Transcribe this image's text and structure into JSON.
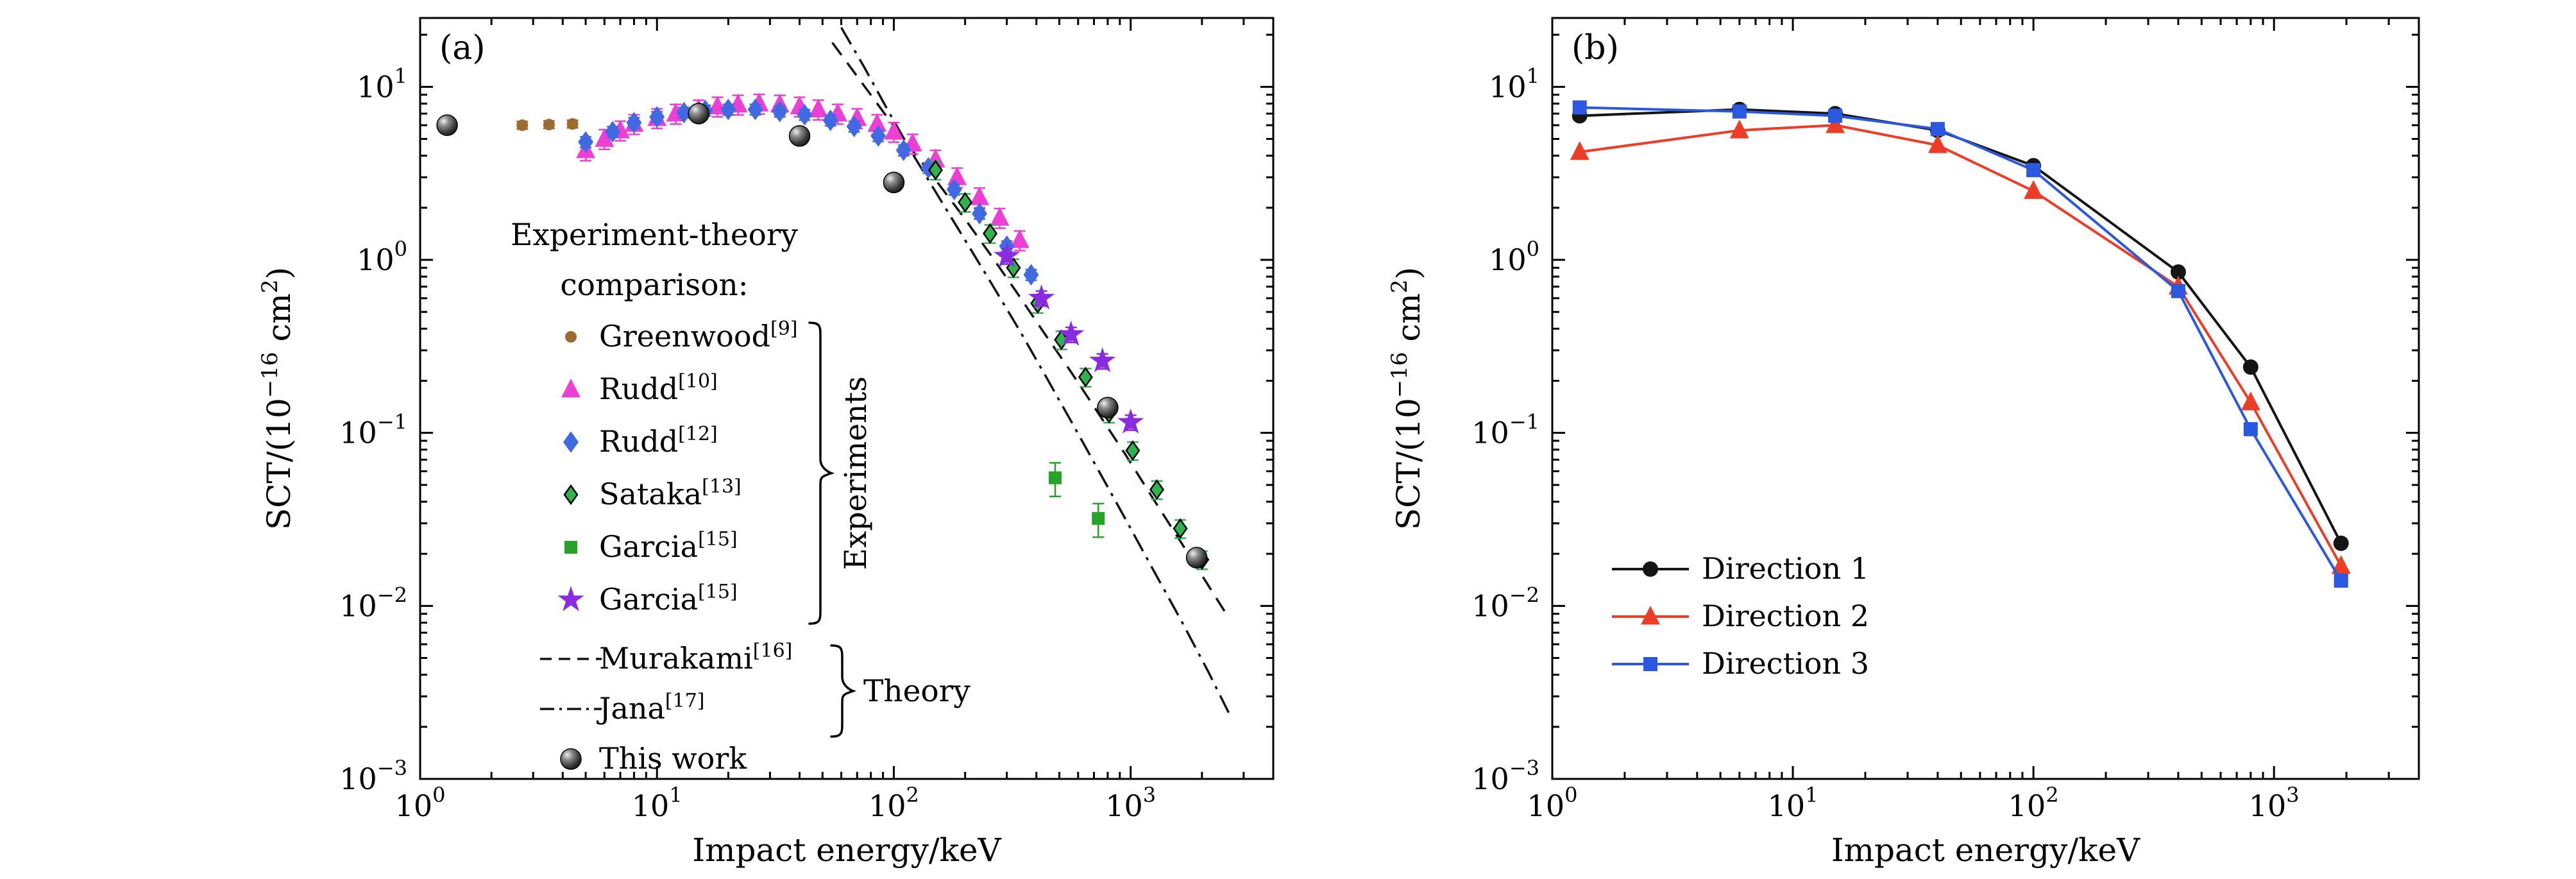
{
  "figure": {
    "background": "#ffffff",
    "frame_color": "#000000",
    "panels": [
      "(a)",
      "(b)"
    ]
  },
  "chart_data": [
    {
      "id": "panel-a",
      "panel_label": "(a)",
      "type": "scatter",
      "x_scale": "log",
      "y_scale": "log",
      "xlim": [
        1,
        4000
      ],
      "ylim": [
        0.001,
        25
      ],
      "grid": false,
      "xlabel": "Impact energy/keV",
      "ylabel": "SCT/(10⁻¹⁶ cm²)",
      "ylabel_parts": [
        {
          "t": "SCT/(10"
        },
        {
          "t": "−16",
          "sup": true
        },
        {
          "t": " cm"
        },
        {
          "t": "2",
          "sup": true
        },
        {
          "t": ")"
        }
      ],
      "x_ticks": [
        {
          "value": 1,
          "base": "10",
          "exp": "0"
        },
        {
          "value": 10,
          "base": "10",
          "exp": "1"
        },
        {
          "value": 100,
          "base": "10",
          "exp": "2"
        },
        {
          "value": 1000,
          "base": "10",
          "exp": "3"
        }
      ],
      "y_ticks": [
        {
          "value": 0.001,
          "base": "10",
          "exp": "−3"
        },
        {
          "value": 0.01,
          "base": "10",
          "exp": "−2"
        },
        {
          "value": 0.1,
          "base": "10",
          "exp": "−1"
        },
        {
          "value": 1,
          "base": "10",
          "exp": "0"
        },
        {
          "value": 10,
          "base": "10",
          "exp": "1"
        }
      ],
      "legend": {
        "title_lines": [
          "Experiment-theory",
          "comparison:"
        ],
        "group_experiments": "Experiments",
        "group_theory": "Theory"
      },
      "series": [
        {
          "key": "greenwood",
          "label": "Greenwood",
          "ref": "[9]",
          "group": "experiments",
          "marker": "circle",
          "color": "#9c6b2f",
          "msize": 9,
          "yerr_rel": 0.05,
          "x": [
            2.7,
            3.5,
            4.4
          ],
          "y": [
            6.0,
            6.05,
            6.1
          ]
        },
        {
          "key": "rudd-10",
          "label": "Rudd",
          "ref": "[10]",
          "group": "experiments",
          "marker": "triangle",
          "color": "#ee3fd4",
          "msize": 13,
          "yerr_rel": 0.13,
          "x": [
            5,
            6,
            7,
            8,
            10,
            12,
            15,
            18,
            22,
            27,
            33,
            40,
            48,
            58,
            70,
            85,
            100,
            120,
            150,
            185,
            230,
            280,
            340
          ],
          "y": [
            4.3,
            5.0,
            5.6,
            6.1,
            6.6,
            7.0,
            7.4,
            7.7,
            7.9,
            8.0,
            7.9,
            7.7,
            7.4,
            7.0,
            6.6,
            6.1,
            5.5,
            4.7,
            3.8,
            3.0,
            2.3,
            1.75,
            1.3
          ]
        },
        {
          "key": "rudd-12",
          "label": "Rudd",
          "ref": "[12]",
          "group": "experiments",
          "marker": "diamond",
          "color": "#4169e1",
          "msize": 12,
          "yerr_rel": 0.07,
          "x": [
            5,
            6.5,
            8,
            10,
            13,
            16,
            20,
            26,
            33,
            42,
            54,
            68,
            86,
            110,
            140,
            180,
            230,
            300,
            380
          ],
          "y": [
            4.8,
            5.5,
            6.2,
            6.7,
            7.1,
            7.3,
            7.4,
            7.4,
            7.2,
            6.9,
            6.4,
            5.9,
            5.2,
            4.3,
            3.4,
            2.55,
            1.85,
            1.2,
            0.82
          ]
        },
        {
          "key": "sataka",
          "label": "Sataka",
          "ref": "[13]",
          "group": "experiments",
          "marker": "diamond",
          "color": "#2fb34e",
          "edge": "#000000",
          "msize": 10,
          "yerr_rel": 0.12,
          "x": [
            150,
            200,
            255,
            320,
            405,
            510,
            645,
            810,
            1020,
            1290,
            1620,
            2000
          ],
          "y": [
            3.3,
            2.15,
            1.42,
            0.9,
            0.56,
            0.345,
            0.21,
            0.13,
            0.079,
            0.047,
            0.028,
            0.0185
          ]
        },
        {
          "key": "garcia-squares",
          "label": "Garcia",
          "ref": "[15]",
          "group": "experiments",
          "marker": "square",
          "color": "#27a327",
          "msize": 10,
          "yerr_rel": 0.22,
          "x": [
            480,
            730
          ],
          "y": [
            0.055,
            0.032
          ]
        },
        {
          "key": "garcia-stars",
          "label": "Garcia",
          "ref": "[15]",
          "group": "experiments",
          "marker": "star",
          "color": "#8a2be2",
          "msize": 14,
          "yerr_rel": 0.1,
          "x": [
            300,
            420,
            560,
            760,
            1000
          ],
          "y": [
            1.05,
            0.6,
            0.37,
            0.26,
            0.115
          ]
        },
        {
          "key": "murakami",
          "label": "Murakami",
          "ref": "[16]",
          "group": "theory",
          "line": true,
          "dash": "dashed",
          "color": "#141414",
          "x": [
            55,
            70,
            90,
            115,
            150,
            195,
            255,
            330,
            430,
            560,
            730,
            950,
            1240,
            1610,
            2100,
            2600
          ],
          "y": [
            18,
            11.5,
            7.2,
            4.6,
            2.9,
            1.8,
            1.08,
            0.65,
            0.38,
            0.225,
            0.13,
            0.075,
            0.042,
            0.024,
            0.0135,
            0.0085
          ]
        },
        {
          "key": "jana",
          "label": "Jana",
          "ref": "[17]",
          "group": "theory",
          "line": true,
          "dash": "dashdot",
          "color": "#141414",
          "x": [
            60,
            75,
            95,
            120,
            155,
            200,
            260,
            340,
            440,
            570,
            740,
            960,
            1250,
            1630,
            2120,
            2600
          ],
          "y": [
            22,
            13,
            7.2,
            4.1,
            2.3,
            1.3,
            0.72,
            0.39,
            0.21,
            0.112,
            0.059,
            0.031,
            0.016,
            0.0083,
            0.0042,
            0.0024
          ]
        },
        {
          "key": "this-work",
          "label": "This work",
          "ref": null,
          "group": "thiswork",
          "marker": "sphere",
          "color": "#3a3a3a",
          "msize": 16,
          "yerr_rel": 0.06,
          "x": [
            1.3,
            15,
            40,
            100,
            800,
            1900
          ],
          "y": [
            6.0,
            7.0,
            5.2,
            2.8,
            0.14,
            0.019
          ]
        }
      ]
    },
    {
      "id": "panel-b",
      "panel_label": "(b)",
      "type": "line",
      "x_scale": "log",
      "y_scale": "log",
      "xlim": [
        1,
        4000
      ],
      "ylim": [
        0.001,
        25
      ],
      "grid": false,
      "xlabel": "Impact energy/keV",
      "ylabel": "SCT/(10⁻¹⁶ cm²)",
      "ylabel_parts": [
        {
          "t": "SCT/(10"
        },
        {
          "t": "−16",
          "sup": true
        },
        {
          "t": " cm"
        },
        {
          "t": "2",
          "sup": true
        },
        {
          "t": ")"
        }
      ],
      "x_ticks": [
        {
          "value": 1,
          "base": "10",
          "exp": "0"
        },
        {
          "value": 10,
          "base": "10",
          "exp": "1"
        },
        {
          "value": 100,
          "base": "10",
          "exp": "2"
        },
        {
          "value": 1000,
          "base": "10",
          "exp": "3"
        }
      ],
      "y_ticks": [
        {
          "value": 0.001,
          "base": "10",
          "exp": "−3"
        },
        {
          "value": 0.01,
          "base": "10",
          "exp": "−2"
        },
        {
          "value": 0.1,
          "base": "10",
          "exp": "−1"
        },
        {
          "value": 1,
          "base": "10",
          "exp": "0"
        },
        {
          "value": 10,
          "base": "10",
          "exp": "1"
        }
      ],
      "legend": {
        "title_lines": [],
        "group_experiments": "",
        "group_theory": ""
      },
      "series": [
        {
          "key": "direction-1",
          "label": "Direction 1",
          "ref": null,
          "group": "directions",
          "marker": "circle",
          "line": true,
          "lw": 4,
          "color": "#151515",
          "msize": 12,
          "x": [
            1.3,
            6,
            15,
            40,
            100,
            400,
            800,
            1900
          ],
          "y": [
            6.8,
            7.4,
            7.0,
            5.6,
            3.5,
            0.85,
            0.24,
            0.023
          ]
        },
        {
          "key": "direction-2",
          "label": "Direction 2",
          "ref": null,
          "group": "directions",
          "marker": "triangle",
          "line": true,
          "lw": 4,
          "color": "#ee3d26",
          "msize": 13,
          "x": [
            1.3,
            6,
            15,
            40,
            100,
            400,
            800,
            1900
          ],
          "y": [
            4.2,
            5.6,
            6.0,
            4.6,
            2.5,
            0.7,
            0.15,
            0.017
          ]
        },
        {
          "key": "direction-3",
          "label": "Direction 3",
          "ref": null,
          "group": "directions",
          "marker": "square",
          "line": true,
          "lw": 4,
          "color": "#2b58e0",
          "msize": 11,
          "x": [
            1.3,
            6,
            15,
            40,
            100,
            400,
            800,
            1900
          ],
          "y": [
            7.6,
            7.2,
            6.8,
            5.7,
            3.3,
            0.66,
            0.105,
            0.014
          ]
        }
      ]
    }
  ]
}
